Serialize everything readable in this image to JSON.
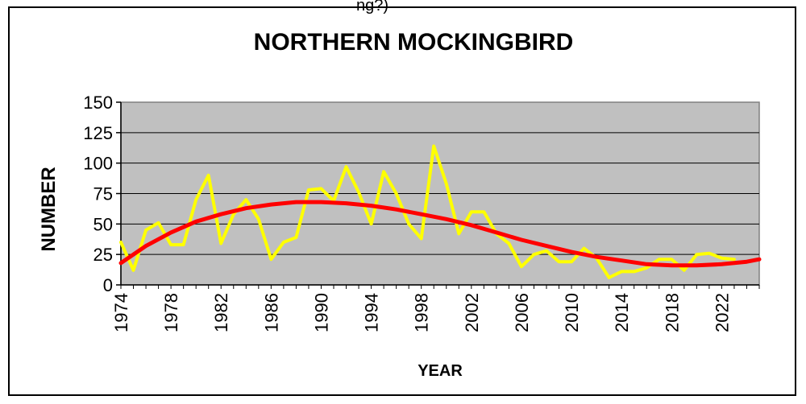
{
  "page": {
    "top_fragment": "ng?)"
  },
  "chart_data": {
    "type": "line",
    "title": "NORTHERN MOCKINGBIRD",
    "xlabel": "YEAR",
    "ylabel": "NUMBER",
    "xlim": [
      1974,
      2025
    ],
    "ylim": [
      0,
      150
    ],
    "yticks": [
      0,
      25,
      50,
      75,
      100,
      125,
      150
    ],
    "xticks": [
      1974,
      1978,
      1982,
      1986,
      1990,
      1994,
      1998,
      2002,
      2006,
      2010,
      2014,
      2018,
      2022
    ],
    "grid": "horizontal",
    "plot_background": "#c0c0c0",
    "series": [
      {
        "color": "#ffff00",
        "x": [
          1974,
          1975,
          1976,
          1977,
          1978,
          1979,
          1980,
          1981,
          1982,
          1983,
          1984,
          1985,
          1986,
          1987,
          1988,
          1989,
          1990,
          1991,
          1992,
          1993,
          1994,
          1995,
          1996,
          1997,
          1998,
          1999,
          2000,
          2001,
          2002,
          2003,
          2004,
          2005,
          2006,
          2007,
          2008,
          2009,
          2010,
          2011,
          2012,
          2013,
          2014,
          2015,
          2016,
          2017,
          2018,
          2019,
          2020,
          2021,
          2022,
          2023
        ],
        "values": [
          35,
          12,
          45,
          51,
          33,
          33,
          70,
          90,
          34,
          58,
          70,
          54,
          21,
          35,
          39,
          78,
          79,
          69,
          97,
          76,
          50,
          93,
          75,
          50,
          38,
          114,
          83,
          42,
          60,
          60,
          42,
          34,
          15,
          25,
          28,
          19,
          19,
          30,
          22,
          6,
          11,
          11,
          14,
          21,
          21,
          12,
          25,
          26,
          22,
          21
        ]
      },
      {
        "color": "#ff0000",
        "x": [
          1974,
          1976,
          1978,
          1980,
          1982,
          1984,
          1986,
          1988,
          1990,
          1992,
          1994,
          1996,
          1998,
          2000,
          2002,
          2004,
          2006,
          2008,
          2010,
          2012,
          2014,
          2016,
          2018,
          2020,
          2022,
          2024,
          2025
        ],
        "values": [
          18,
          32,
          43,
          52,
          58,
          63,
          66,
          68,
          68,
          67,
          65,
          62,
          58,
          54,
          49,
          43,
          37,
          32,
          27,
          23,
          20,
          17,
          16,
          16,
          17,
          19,
          21
        ]
      }
    ]
  }
}
